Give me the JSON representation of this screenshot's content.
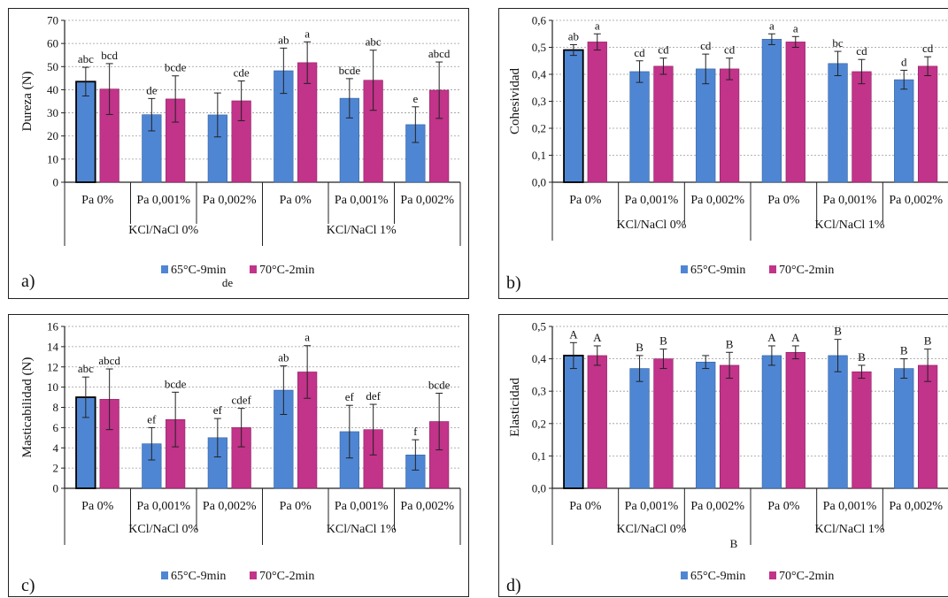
{
  "colors": {
    "series1": "#4f86d3",
    "series2": "#c2338a",
    "series1_edge": "#2f5f9e",
    "series2_edge": "#8e1f63",
    "grid": "#999999",
    "axis": "#222222",
    "red_letter": "#c0392b"
  },
  "shared": {
    "categories": [
      "Pa 0%",
      "Pa 0,001%",
      "Pa 0,002%",
      "Pa 0%",
      "Pa 0,001%",
      "Pa 0,002%"
    ],
    "groups": [
      "KCl/NaCl 0%",
      "KCl/NaCl 1%"
    ],
    "series_names": [
      "65°C-9min",
      "70°C-2min"
    ]
  },
  "chart_data": [
    {
      "panel_label": "a)",
      "type": "bar",
      "ylabel": "Dureza (N)",
      "ylim": [
        0,
        70
      ],
      "yticks": [
        0,
        10,
        20,
        30,
        40,
        50,
        60,
        70
      ],
      "ytick_decimals": 0,
      "categories": [
        "Pa 0%",
        "Pa 0,001%",
        "Pa 0,002%",
        "Pa 0%",
        "Pa 0,001%",
        "Pa 0,002%"
      ],
      "groups": [
        "KCl/NaCl 0%",
        "KCl/NaCl 1%"
      ],
      "series": [
        {
          "name": "65°C-9min",
          "values": [
            43.5,
            29.2,
            29.1,
            48.2,
            36.3,
            24.9
          ],
          "errors": [
            6.2,
            7.0,
            9.5,
            9.8,
            8.5,
            7.7
          ],
          "letters": [
            "abc",
            "de",
            "",
            "ab",
            "bcde",
            "e"
          ]
        },
        {
          "name": "70°C-2min",
          "values": [
            40.3,
            36.0,
            35.2,
            51.7,
            44.1,
            39.8
          ],
          "errors": [
            11.0,
            10.0,
            8.6,
            9.0,
            13.0,
            12.2
          ],
          "letters": [
            "bcd",
            "bcde",
            "cde",
            "a",
            "abc",
            "abcd"
          ]
        }
      ],
      "extra_text": "de",
      "grid": true,
      "legend": "bottom"
    },
    {
      "panel_label": "b)",
      "type": "bar",
      "ylabel": "Cohesividad",
      "ylim": [
        0,
        0.6
      ],
      "yticks": [
        0,
        0.1,
        0.2,
        0.3,
        0.4,
        0.5,
        0.6
      ],
      "ytick_decimals": 1,
      "categories": [
        "Pa 0%",
        "Pa 0,001%",
        "Pa 0,002%",
        "Pa 0%",
        "Pa 0,001%",
        "Pa 0,002%"
      ],
      "groups": [
        "KCl/NaCl 0%",
        "KCl/NaCl 1%"
      ],
      "series": [
        {
          "name": "65°C-9min",
          "values": [
            0.49,
            0.41,
            0.42,
            0.53,
            0.44,
            0.38
          ],
          "errors": [
            0.02,
            0.04,
            0.055,
            0.02,
            0.045,
            0.035
          ],
          "letters": [
            "ab",
            "cd",
            "cd",
            "a",
            "bc",
            "d"
          ]
        },
        {
          "name": "70°C-2min",
          "values": [
            0.52,
            0.43,
            0.42,
            0.52,
            0.41,
            0.43
          ],
          "errors": [
            0.03,
            0.03,
            0.04,
            0.02,
            0.045,
            0.035
          ],
          "letters": [
            "a",
            "cd",
            "cd",
            "a",
            "cd",
            "cd"
          ]
        }
      ],
      "grid": true,
      "legend": "bottom"
    },
    {
      "panel_label": "c)",
      "type": "bar",
      "ylabel": "Masticabilidad (N)",
      "ylim": [
        0,
        16
      ],
      "yticks": [
        0,
        2,
        4,
        6,
        8,
        10,
        12,
        14,
        16
      ],
      "ytick_decimals": 0,
      "categories": [
        "Pa 0%",
        "Pa 0,001%",
        "Pa 0,002%",
        "Pa 0%",
        "Pa 0,001%",
        "Pa 0,002%"
      ],
      "groups": [
        "KCl/NaCl 0%",
        "KCl/NaCl 1%"
      ],
      "series": [
        {
          "name": "65°C-9min",
          "values": [
            9.0,
            4.4,
            5.0,
            9.7,
            5.6,
            3.3
          ],
          "errors": [
            2.0,
            1.6,
            1.9,
            2.4,
            2.6,
            1.5
          ],
          "letters": [
            "abc",
            "ef",
            "ef",
            "ab",
            "ef",
            "f"
          ]
        },
        {
          "name": "70°C-2min",
          "values": [
            8.8,
            6.8,
            6.0,
            11.5,
            5.8,
            6.6
          ],
          "errors": [
            3.0,
            2.7,
            1.9,
            2.6,
            2.5,
            2.8
          ],
          "letters": [
            "abcd",
            "bcde",
            "cdef",
            "a",
            "def",
            "bcde"
          ]
        }
      ],
      "grid": true,
      "legend": "bottom"
    },
    {
      "panel_label": "d)",
      "type": "bar",
      "ylabel": "Elasticidad",
      "ylim": [
        0,
        0.5
      ],
      "yticks": [
        0,
        0.1,
        0.2,
        0.3,
        0.4,
        0.5
      ],
      "ytick_decimals": 1,
      "categories": [
        "Pa 0%",
        "Pa 0,001%",
        "Pa 0,002%",
        "Pa 0%",
        "Pa 0,001%",
        "Pa 0,002%"
      ],
      "groups": [
        "KCl/NaCl 0%",
        "KCl/NaCl 1%"
      ],
      "series": [
        {
          "name": "65°C-9min",
          "values": [
            0.41,
            0.37,
            0.39,
            0.41,
            0.41,
            0.37
          ],
          "errors": [
            0.04,
            0.04,
            0.02,
            0.03,
            0.05,
            0.03
          ],
          "letters": [
            "A",
            "B",
            "",
            "A",
            "B",
            "B"
          ]
        },
        {
          "name": "70°C-2min",
          "values": [
            0.41,
            0.4,
            0.38,
            0.42,
            0.36,
            0.38
          ],
          "errors": [
            0.03,
            0.03,
            0.04,
            0.02,
            0.02,
            0.05
          ],
          "letters": [
            "A",
            "B",
            "B",
            "A",
            "B",
            "B"
          ]
        }
      ],
      "red_letter_first": true,
      "extra_text": "B",
      "grid": true,
      "legend": "bottom"
    }
  ]
}
